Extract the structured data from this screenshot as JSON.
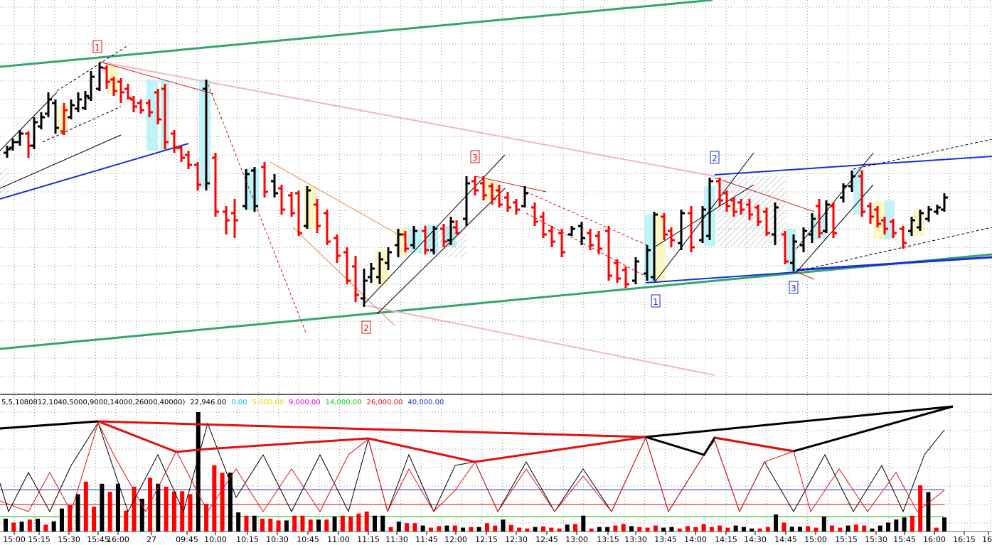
{
  "chart_data": {
    "type": "bar",
    "time_labels": [
      "15:00",
      "15:15",
      "15:30",
      "15:45",
      "16:00",
      "27",
      "09:45",
      "10:00",
      "10:15",
      "10:30",
      "10:45",
      "11:00",
      "11:15",
      "11:30",
      "11:45",
      "12:00",
      "12:15",
      "12:30",
      "12:45",
      "13:00",
      "13:15",
      "13:30",
      "13:45",
      "14:00",
      "14:15",
      "14:30",
      "14:45",
      "15:00",
      "15:15",
      "15:30",
      "15:45",
      "16:00",
      "16:15",
      "16:"
    ],
    "wave_labels": [
      {
        "text": "1",
        "color": "#e01010"
      },
      {
        "text": "2",
        "color": "#e01010"
      },
      {
        "text": "3",
        "color": "#e01010"
      },
      {
        "text": "1",
        "color": "#1a2fd6"
      },
      {
        "text": "2",
        "color": "#1a2fd6"
      },
      {
        "text": "3",
        "color": "#1a2fd6"
      }
    ],
    "indicator": {
      "params": "5,5,1080812,1040,5000,9000,14000,26000,40000)",
      "current_value": "22,946.00",
      "levels": [
        {
          "text": "0.00",
          "color": "#00c8e6"
        },
        {
          "text": "5,000.00",
          "color": "#e6d200"
        },
        {
          "text": "9,000.00",
          "color": "#e600e6"
        },
        {
          "text": "14,000.00",
          "color": "#00d400"
        },
        {
          "text": "26,000.00",
          "color": "#e01010"
        },
        {
          "text": "40,000.00",
          "color": "#1a2fd6"
        }
      ],
      "volume": [
        4300,
        3000,
        3300,
        4000,
        4300,
        2300,
        3400,
        7700,
        8800,
        12500,
        16700,
        8300,
        16000,
        13300,
        16000,
        7000,
        15000,
        11000,
        18000,
        16000,
        15000,
        13400,
        13500,
        12500,
        40000,
        9300,
        22200,
        19700,
        19700,
        6400,
        5300,
        5300,
        4300,
        4300,
        3700,
        3700,
        5300,
        5300,
        4000,
        4000,
        4000,
        5000,
        5300,
        5000,
        6000,
        6700,
        5300,
        5300,
        1500,
        3300,
        2800,
        2800,
        2000,
        1300,
        1800,
        2000,
        2000,
        1300,
        1500,
        1500,
        2800,
        2000,
        4000,
        2200,
        1300,
        1000,
        1500,
        1700,
        1300,
        1000,
        2300,
        2500,
        5300,
        1000,
        1500,
        1500,
        2000,
        2500,
        1800,
        1500,
        1300,
        2000,
        1300,
        1500,
        1000,
        1800,
        1500,
        2500,
        1500,
        2000,
        1300,
        2000,
        1500,
        1000,
        1000,
        1500,
        5700,
        3000,
        1600,
        1600,
        1800,
        1300,
        5000,
        2000,
        1300,
        2000,
        2300,
        2000,
        1000,
        2000,
        3000,
        4000,
        4700,
        5300,
        15500,
        13200,
        1300,
        4700
      ],
      "volume_colors": [
        "k",
        "r",
        "k",
        "r",
        "k",
        "r",
        "k",
        "k",
        "r",
        "k",
        "r",
        "r",
        "k",
        "r",
        "k",
        "r",
        "r",
        "k",
        "r",
        "k",
        "r",
        "r",
        "r",
        "r",
        "k",
        "r",
        "r",
        "r",
        "k",
        "k",
        "r",
        "k",
        "r",
        "r",
        "r",
        "k",
        "r",
        "r",
        "r",
        "k",
        "r",
        "k",
        "r",
        "r",
        "r",
        "r",
        "k",
        "k",
        "r",
        "k",
        "r",
        "r",
        "k",
        "r",
        "r",
        "k",
        "r",
        "k",
        "r",
        "k",
        "r",
        "r",
        "k",
        "r",
        "r",
        "r",
        "k",
        "r",
        "r",
        "r",
        "k",
        "r",
        "k",
        "r",
        "k",
        "k",
        "r",
        "r",
        "k",
        "r",
        "r",
        "r",
        "k",
        "k",
        "r",
        "r",
        "r",
        "r",
        "r",
        "r",
        "r",
        "k",
        "k",
        "k",
        "r",
        "r",
        "k",
        "r",
        "k",
        "k",
        "r",
        "r",
        "k",
        "r",
        "r",
        "k",
        "r",
        "r",
        "k",
        "k",
        "k",
        "k",
        "k",
        "r",
        "r",
        "k",
        "r",
        "k"
      ],
      "color_scheme": {
        "up": "#000000",
        "down": "#ff0000"
      }
    },
    "colors": {
      "up_bar": "#000000",
      "down_bar": "#ff0000",
      "channel_green": "#33a66b",
      "trend_blue": "#1a2fd6",
      "trend_pink": "#f2b6c0",
      "highlight_cyan": "#bff3f7",
      "highlight_yellow": "#fbf7c3",
      "grid": "#9a9a9a"
    }
  }
}
